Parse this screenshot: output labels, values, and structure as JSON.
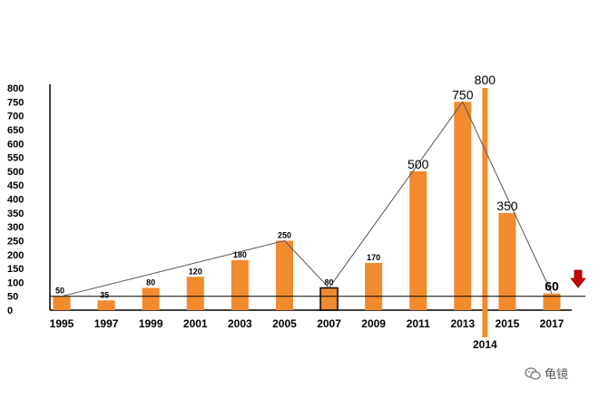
{
  "chart_data": {
    "type": "bar",
    "title": "",
    "xlabel": "",
    "ylabel": "",
    "ylim": [
      0,
      800
    ],
    "yticks": [
      0,
      50,
      100,
      150,
      200,
      250,
      300,
      350,
      400,
      450,
      500,
      550,
      600,
      650,
      700,
      750,
      800
    ],
    "categories": [
      "1995",
      "1997",
      "1999",
      "2001",
      "2003",
      "2005",
      "2007",
      "2009",
      "2011",
      "2013",
      "2015",
      "2017"
    ],
    "values": [
      50,
      35,
      80,
      120,
      180,
      250,
      80,
      170,
      500,
      750,
      350,
      60
    ],
    "data_labels": [
      "50",
      "35",
      "80",
      "120",
      "180",
      "250",
      "80",
      "170",
      "500",
      "750",
      "350",
      "60"
    ],
    "trend_line": [
      {
        "x": "1995",
        "y": 50
      },
      {
        "x": "2005",
        "y": 250
      },
      {
        "x": "2007",
        "y": 80
      },
      {
        "x": "2013",
        "y": 750
      },
      {
        "x": "2017",
        "y": 60
      }
    ],
    "highlight": {
      "x": "2014",
      "value": 800,
      "label": "800",
      "x_label": "2014"
    },
    "reference_line": {
      "y": 50
    },
    "grid": false,
    "legend": "none",
    "colors": {
      "bar": "#f28a2e",
      "bar_outline": "#000000",
      "highlight_bar": "#f28a2e",
      "line": "#555555",
      "arrow": "#cc0000"
    }
  },
  "watermark": {
    "text": "龟镜",
    "icon": "wechat-icon"
  }
}
